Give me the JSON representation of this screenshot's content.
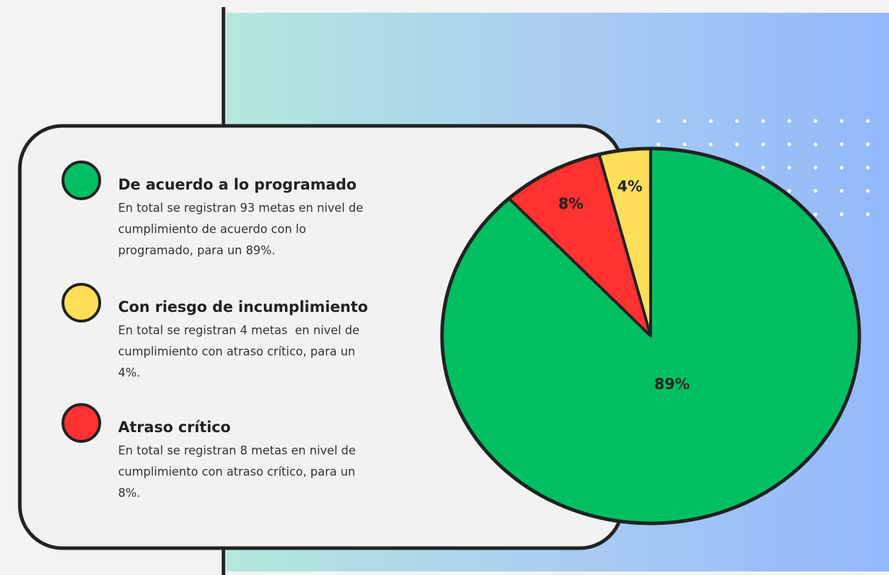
{
  "chart_data": {
    "type": "pie",
    "categories": [
      "De acuerdo a lo programado",
      "Con riesgo de incumplimiento",
      "Atraso crítico"
    ],
    "descriptions": [
      [
        "En total se registran 93 metas en nivel de",
        "cumplimiento de acuerdo con lo",
        "programado, para un 89%."
      ],
      [
        "En total se registran 4 metas  en nivel de",
        "cumplimiento con atraso crítico, para un",
        "4%."
      ],
      [
        "En total se registran 8 metas en nivel de",
        "cumplimiento con atraso crítico, para un",
        "8%."
      ]
    ],
    "values": [
      89,
      4,
      8
    ],
    "value_labels": [
      "89%",
      "4%",
      "8%"
    ],
    "colors": [
      "#00bf63",
      "#ffde59",
      "#ff3131"
    ]
  }
}
